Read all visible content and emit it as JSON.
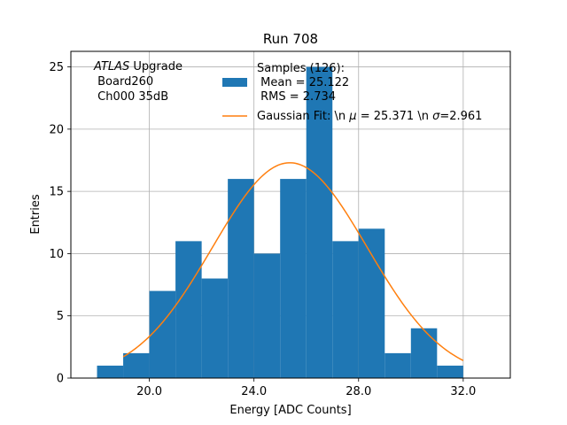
{
  "chart_data": {
    "type": "bar",
    "title": "Run 708",
    "xlabel": "Energy [ADC Counts]",
    "ylabel": "Entries",
    "xlim": [
      17.0,
      33.8
    ],
    "ylim": [
      0,
      26.25
    ],
    "xticks": [
      20.0,
      24.0,
      28.0,
      32.0
    ],
    "xtick_labels": [
      "20.0",
      "24.0",
      "28.0",
      "32.0"
    ],
    "yticks": [
      0,
      5,
      10,
      15,
      20,
      25
    ],
    "ytick_labels": [
      "0",
      "5",
      "10",
      "15",
      "20",
      "25"
    ],
    "grid": true,
    "bin_edges": [
      18,
      19,
      20,
      21,
      22,
      23,
      24,
      25,
      26,
      27,
      28,
      29,
      30,
      31,
      32
    ],
    "counts": [
      1,
      2,
      7,
      11,
      8,
      16,
      10,
      16,
      25,
      11,
      12,
      2,
      4,
      1
    ],
    "histogram_color": "#1f77b4",
    "fit": {
      "name": "Gaussian Fit",
      "mu": 25.371,
      "sigma": 2.961,
      "amplitude": 17.3,
      "x_range": [
        19,
        32
      ],
      "color": "#ff7f0e"
    },
    "legend": {
      "placement": "upper center",
      "samples_line1": "Samples (126):",
      "samples_line2": " Mean = 25.122",
      "samples_line3": " RMS = 2.734",
      "fit_label_prefix": "Gaussian Fit: \\n ",
      "fit_mu_symbol": "μ",
      "fit_mu_value": " = 25.371 \\n ",
      "fit_sigma_symbol": "σ",
      "fit_sigma_value": "=2.961"
    },
    "annotation": {
      "placement": "upper left",
      "atlas": "ATLAS",
      "line1_rest": " Upgrade",
      "line2": " Board260",
      "line3": " Ch000 35dB"
    }
  }
}
